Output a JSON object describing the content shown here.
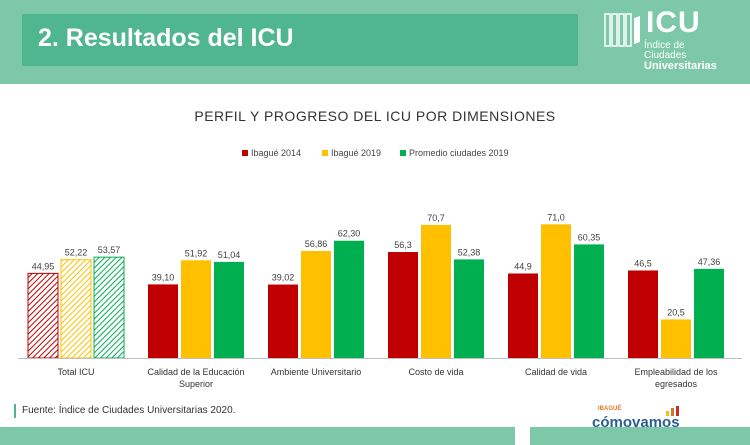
{
  "header": {
    "title": "2. Resultados del ICU"
  },
  "logo": {
    "mark": "ICU",
    "line1": "Índice de",
    "line2": "Ciudades",
    "line3": "Universitarias"
  },
  "source_note": "Fuente: Índice de Ciudades Universitarias 2020.",
  "brand": {
    "name": "cómovamos",
    "city": "IBAGUÉ"
  },
  "colors": {
    "series_2014": "#c00000",
    "series_2019": "#ffc000",
    "series_avg": "#00b050",
    "header_band": "#7cc8a9",
    "header_title_bg": "#4fb68f"
  },
  "chart_data": {
    "type": "bar",
    "title": "PERFIL Y PROGRESO DEL ICU POR DIMENSIONES",
    "xlabel": "",
    "ylabel": "",
    "legend_position": "top-center",
    "grid": false,
    "ylim": [
      0,
      85
    ],
    "categories": [
      [
        "Total ICU"
      ],
      [
        "Calidad de la Educación",
        "Superior"
      ],
      [
        "Ambiente Universitario"
      ],
      [
        "Costo de vida"
      ],
      [
        "Calidad de vida"
      ],
      [
        "Empleabilidad de los",
        "egresados"
      ]
    ],
    "series": [
      {
        "name": "Ibagué 2014",
        "color": "#c00000",
        "values": [
          44.95,
          39.1,
          39.02,
          56.3,
          44.9,
          46.5
        ],
        "labels": [
          "44,95",
          "39,10",
          "39,02",
          "56,3",
          "44,9",
          "46,5"
        ]
      },
      {
        "name": "Ibagué 2019",
        "color": "#ffc000",
        "values": [
          52.22,
          51.92,
          56.86,
          70.7,
          71.0,
          20.5
        ],
        "labels": [
          "52,22",
          "51,92",
          "56,86",
          "70,7",
          "71,0",
          "20,5"
        ]
      },
      {
        "name": "Promedio ciudades 2019",
        "color": "#00b050",
        "values": [
          53.57,
          51.04,
          62.3,
          52.38,
          60.35,
          47.36
        ],
        "labels": [
          "53,57",
          "51,04",
          "62,30",
          "52,38",
          "60,35",
          "47,36"
        ]
      }
    ],
    "hatched_categories": [
      0
    ]
  }
}
